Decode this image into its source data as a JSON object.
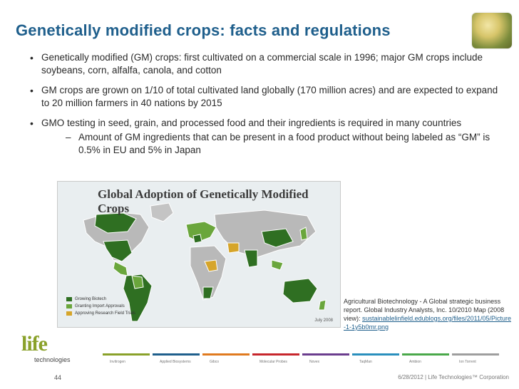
{
  "slide": {
    "title": "Genetically modified crops: facts and regulations",
    "bullets": [
      {
        "text": "Genetically modified (GM) crops: first cultivated on a commercial scale in 1996; major GM crops include soybeans, corn, alfalfa, canola, and cotton"
      },
      {
        "text": "GM crops are grown on 1/10 of total cultivated land globally (170 million acres) and are expected to expand to 20 million farmers in 40 nations by 2015"
      },
      {
        "text": "GMO testing in seed, grain, and processed food and their ingredients is required in many countries",
        "sub": "Amount of GM ingredients that can be present in a food product without being labeled as “GM” is 0.5% in EU and 5% in Japan"
      }
    ]
  },
  "map": {
    "title": "Global Adoption of Genetically Modified Crops",
    "legend": [
      {
        "label": "Growing Biotech",
        "color": "#2f6f22"
      },
      {
        "label": "Granting Import Approvals",
        "color": "#6aa63c"
      },
      {
        "label": "Approving Research Field Trials",
        "color": "#d6a52a"
      }
    ],
    "date": "July 2008"
  },
  "caption": {
    "text": "Agricultural Biotechnology - A Global strategic business report.  Global Industry Analysts, Inc. 10/2010 Map (2008 view):",
    "link": "sustainablelinfield.edublogs.org/files/2011/05/Picture-1-1y5b0mr.png"
  },
  "logo": {
    "main": "life",
    "sub": "technologies"
  },
  "brand_strip": [
    {
      "label": "Invitrogen",
      "color": "#8aa12a"
    },
    {
      "label": "Applied Biosystems",
      "color": "#1f5f8c"
    },
    {
      "label": "Gibco",
      "color": "#e07a1f"
    },
    {
      "label": "Molecular Probes",
      "color": "#c7262c"
    },
    {
      "label": "Novex",
      "color": "#6b3d8e"
    },
    {
      "label": "TaqMan",
      "color": "#2a8fbd"
    },
    {
      "label": "Ambion",
      "color": "#4aa84a"
    },
    {
      "label": "Ion Torrent",
      "color": "#9e9e9e"
    }
  ],
  "page_number": "44",
  "footer": "6/28/2012  |  Life Technologies™ Corporation"
}
